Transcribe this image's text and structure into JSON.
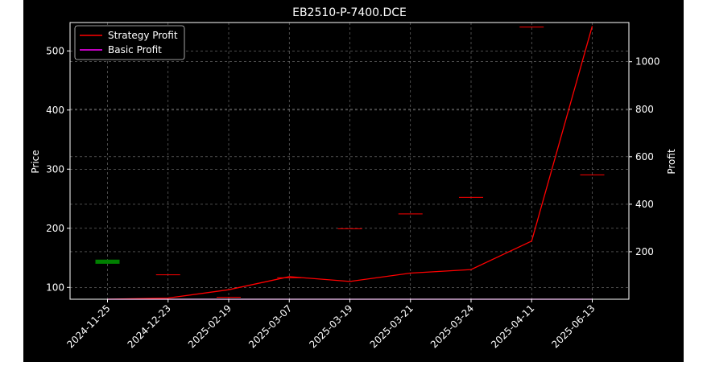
{
  "chart_data": {
    "type": "candlestick+line",
    "title": "EB2510-P-7400.DCE",
    "ylabel": "Price",
    "y2label": "Profit",
    "ylim": [
      80,
      548
    ],
    "y2lim": [
      0,
      1165
    ],
    "yticks": [
      100,
      200,
      300,
      400,
      500
    ],
    "y2ticks": [
      200,
      400,
      600,
      800,
      1000
    ],
    "categories": [
      "2024-11-25",
      "2024-12-23",
      "2025-02-19",
      "2025-03-07",
      "2025-03-19",
      "2025-03-21",
      "2025-03-24",
      "2025-04-11",
      "2025-06-13"
    ],
    "grid": true,
    "legend_position": "top-left",
    "candles": [
      {
        "date": "2024-11-25",
        "open": 140,
        "close": 147,
        "high": 147,
        "low": 140,
        "color": "#008000"
      },
      {
        "date": "2024-12-23",
        "open": 122,
        "close": 122,
        "high": 122,
        "low": 122,
        "color": "#ff0000"
      },
      {
        "date": "2025-02-19",
        "open": 84,
        "close": 84,
        "high": 84,
        "low": 84,
        "color": "#ff0000"
      },
      {
        "date": "2025-03-07",
        "open": 117,
        "close": 117,
        "high": 117,
        "low": 117,
        "color": "#ff0000"
      },
      {
        "date": "2025-03-19",
        "open": 200,
        "close": 200,
        "high": 200,
        "low": 200,
        "color": "#ff0000"
      },
      {
        "date": "2025-03-21",
        "open": 225,
        "close": 225,
        "high": 225,
        "low": 225,
        "color": "#ff0000"
      },
      {
        "date": "2025-03-24",
        "open": 253,
        "close": 253,
        "high": 253,
        "low": 253,
        "color": "#ff0000"
      },
      {
        "date": "2025-04-11",
        "open": 541,
        "close": 541,
        "high": 541,
        "low": 541,
        "color": "#ff0000"
      },
      {
        "date": "2025-06-13",
        "open": 291,
        "close": 291,
        "high": 291,
        "low": 291,
        "color": "#ff0000"
      }
    ],
    "series": [
      {
        "name": "Strategy Profit",
        "color": "#ff0000",
        "values": [
          0,
          5,
          40,
          95,
          75,
          110,
          125,
          245,
          1150
        ]
      },
      {
        "name": "Basic Profit",
        "color": "#ff00ff",
        "values": [
          0,
          0,
          0,
          0,
          0,
          0,
          0,
          0,
          0
        ]
      }
    ]
  }
}
